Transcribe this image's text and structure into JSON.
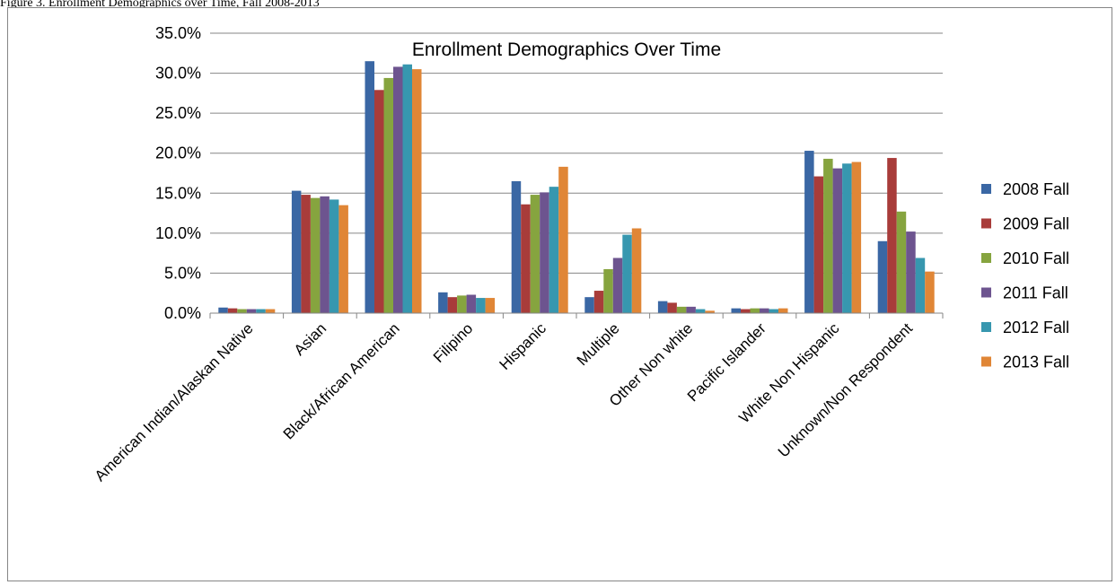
{
  "caption": "Figure 3. Enrollment Demographics over Time, Fall 2008-2013",
  "chart_data": {
    "type": "bar",
    "title": "Enrollment Demographics Over Time",
    "xlabel": "",
    "ylabel": "",
    "ylim": [
      0,
      35
    ],
    "y_ticks": [
      "0.0%",
      "5.0%",
      "10.0%",
      "15.0%",
      "20.0%",
      "25.0%",
      "30.0%",
      "35.0%"
    ],
    "y_tick_values": [
      0,
      5,
      10,
      15,
      20,
      25,
      30,
      35
    ],
    "grid": true,
    "legend_position": "right",
    "categories": [
      "American Indian/Alaskan Native",
      "Asian",
      "Black/African American",
      "Filipino",
      "Hispanic",
      "Multiple",
      "Other Non white",
      "Pacific Islander",
      "White Non Hispanic",
      "Unknown/Non Respondent"
    ],
    "series": [
      {
        "name": "2008 Fall",
        "color": "#3A67A4",
        "values": [
          0.7,
          15.3,
          31.5,
          2.6,
          16.5,
          2.0,
          1.5,
          0.6,
          20.3,
          9.0
        ]
      },
      {
        "name": "2009 Fall",
        "color": "#A83C3A",
        "values": [
          0.6,
          14.8,
          27.9,
          2.0,
          13.6,
          2.8,
          1.3,
          0.5,
          17.1,
          19.4
        ]
      },
      {
        "name": "2010 Fall",
        "color": "#86A43F",
        "values": [
          0.5,
          14.4,
          29.4,
          2.2,
          14.8,
          5.5,
          0.8,
          0.6,
          19.3,
          12.7
        ]
      },
      {
        "name": "2011 Fall",
        "color": "#6D548F",
        "values": [
          0.5,
          14.6,
          30.8,
          2.3,
          15.1,
          6.9,
          0.8,
          0.6,
          18.1,
          10.2
        ]
      },
      {
        "name": "2012 Fall",
        "color": "#3797AF",
        "values": [
          0.5,
          14.2,
          31.1,
          1.9,
          15.8,
          9.8,
          0.5,
          0.5,
          18.7,
          6.9
        ]
      },
      {
        "name": "2013 Fall",
        "color": "#E08636",
        "values": [
          0.5,
          13.5,
          30.5,
          1.9,
          18.3,
          10.6,
          0.3,
          0.6,
          18.9,
          5.2
        ]
      }
    ]
  }
}
